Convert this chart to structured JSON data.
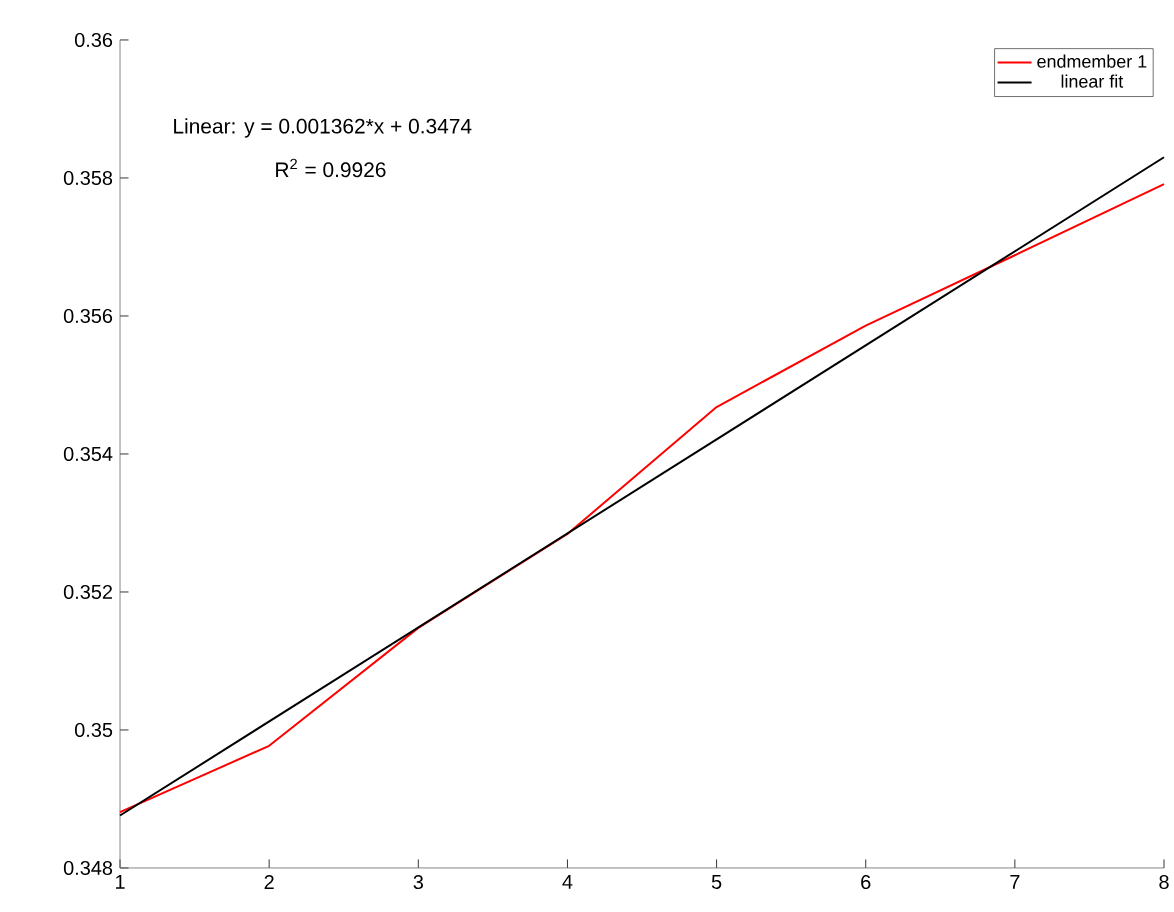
{
  "chart_data": {
    "type": "line",
    "annotations": [
      "Linear:  y = 0.001362*x + 0.3474",
      "R$^{2}$ = 0.9926"
    ],
    "series": [
      {
        "name": "endmember 1",
        "color": "#ff0000",
        "x": [
          1,
          2,
          3,
          4,
          5,
          6,
          7,
          8
        ],
        "values": [
          0.34881,
          0.34977,
          0.35148,
          0.35284,
          0.35468,
          0.35586,
          0.35688,
          0.35791
        ]
      },
      {
        "name": "linear fit",
        "color": "#000000",
        "x": [
          1,
          8
        ],
        "values": [
          0.34876,
          0.3583
        ]
      }
    ],
    "xlim": [
      1,
      8
    ],
    "xticks": [
      1,
      2,
      3,
      4,
      5,
      6,
      7,
      8
    ],
    "ylim": [
      0.348,
      0.36
    ],
    "yticks": [
      0.348,
      0.35,
      0.352,
      0.354,
      0.356,
      0.358,
      0.36
    ],
    "grid": false,
    "legend": "top right",
    "marker": "none",
    "line_style": "solid"
  }
}
